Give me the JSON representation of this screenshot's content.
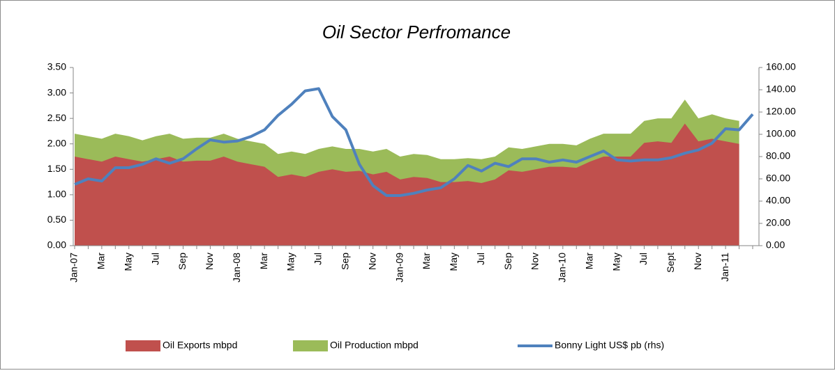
{
  "chart_data": {
    "type": "combo",
    "title": "Oil Sector Perfromance",
    "categories": [
      "Jan-07",
      null,
      "Mar",
      null,
      "May",
      null,
      "Jul",
      null,
      "Sep",
      null,
      "Nov",
      null,
      "Jan-08",
      null,
      "Mar",
      null,
      "May",
      null,
      "Jul",
      null,
      "Sep",
      null,
      "Nov",
      null,
      "Jan-09",
      null,
      "Mar",
      null,
      "May",
      null,
      "Jul",
      null,
      "Sep",
      null,
      "Nov",
      null,
      "Jan-10",
      null,
      "Mar",
      null,
      "May",
      null,
      "Jul",
      null,
      "Sept",
      null,
      "Nov",
      null,
      "Jan-11",
      null,
      null
    ],
    "series": [
      {
        "name": "Oil Production mbpd",
        "type": "area",
        "color": "#9bbb59",
        "values": [
          2.2,
          2.15,
          2.1,
          2.2,
          2.15,
          2.07,
          2.15,
          2.2,
          2.1,
          2.12,
          2.12,
          2.2,
          2.1,
          2.05,
          2.0,
          1.8,
          1.85,
          1.8,
          1.9,
          1.95,
          1.9,
          1.9,
          1.85,
          1.9,
          1.75,
          1.8,
          1.78,
          1.7,
          1.7,
          1.72,
          1.7,
          1.75,
          1.93,
          1.9,
          1.95,
          2.0,
          2.0,
          1.97,
          2.1,
          2.2,
          2.2,
          2.2,
          2.45,
          2.5,
          2.5,
          2.87,
          2.5,
          2.58,
          2.5,
          2.45,
          null
        ]
      },
      {
        "name": "Oil Exports mbpd",
        "type": "area",
        "color": "#c0504d",
        "values": [
          1.75,
          1.7,
          1.65,
          1.75,
          1.7,
          1.65,
          1.7,
          1.75,
          1.65,
          1.67,
          1.67,
          1.75,
          1.65,
          1.6,
          1.55,
          1.35,
          1.4,
          1.35,
          1.45,
          1.5,
          1.45,
          1.47,
          1.4,
          1.45,
          1.3,
          1.35,
          1.33,
          1.25,
          1.25,
          1.27,
          1.23,
          1.3,
          1.48,
          1.45,
          1.5,
          1.55,
          1.55,
          1.53,
          1.65,
          1.75,
          1.75,
          1.75,
          2.02,
          2.05,
          2.02,
          2.4,
          2.05,
          2.1,
          2.05,
          2.0,
          null
        ]
      },
      {
        "name": "Bonny Light US$ pb (rhs)",
        "type": "line",
        "axis": "y2",
        "color": "#4f81bd",
        "values": [
          55,
          60,
          58,
          70,
          70,
          73,
          78,
          74,
          78,
          87,
          95,
          93,
          94,
          98,
          104,
          117,
          127,
          139,
          141,
          116,
          104,
          73,
          54,
          45,
          45,
          47,
          50,
          52,
          60,
          72,
          67,
          74,
          71,
          78,
          78,
          75,
          77,
          75,
          80,
          85,
          77,
          76,
          77,
          77,
          79,
          83,
          86,
          92,
          105,
          104,
          118
        ]
      }
    ],
    "ylim": [
      0,
      3.5
    ],
    "yticks": [
      {
        "value": 0,
        "label": "0.00"
      },
      {
        "value": 0.5,
        "label": "0.50"
      },
      {
        "value": 1,
        "label": "1.00"
      },
      {
        "value": 1.5,
        "label": "1.50"
      },
      {
        "value": 2,
        "label": "2.00"
      },
      {
        "value": 2.5,
        "label": "2.50"
      },
      {
        "value": 3,
        "label": "3.00"
      },
      {
        "value": 3.5,
        "label": "3.50"
      }
    ],
    "y2lim": [
      0,
      160
    ],
    "y2ticks": [
      {
        "value": 0,
        "label": "0.00"
      },
      {
        "value": 20,
        "label": "20.00"
      },
      {
        "value": 40,
        "label": "40.00"
      },
      {
        "value": 60,
        "label": "60.00"
      },
      {
        "value": 80,
        "label": "80.00"
      },
      {
        "value": 100,
        "label": "100.00"
      },
      {
        "value": 120,
        "label": "120.00"
      },
      {
        "value": 140,
        "label": "140.00"
      },
      {
        "value": 160,
        "label": "160.00"
      }
    ],
    "legend": "bottom"
  }
}
